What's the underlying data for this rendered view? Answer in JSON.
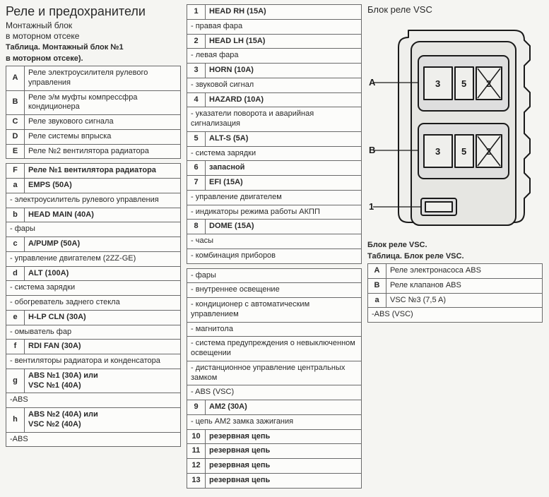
{
  "col1": {
    "title": "Реле и предохранители",
    "sub1": "Монтажный блок",
    "sub2": "в моторном отсеке",
    "caption1": "Таблица. Монтажный блок №1",
    "caption2": "в моторном отсеке).",
    "t1": [
      {
        "k": "A",
        "v": "Реле электроусилителя рулевого управления"
      },
      {
        "k": "B",
        "v": "Реле э/м муфты компрессфра кондиционера"
      },
      {
        "k": "C",
        "v": "Реле звукового сигнала"
      },
      {
        "k": "D",
        "v": "Реле системы впрыска"
      },
      {
        "k": "E",
        "v": "Реле №2 вентилятора радиатора"
      }
    ],
    "t2": [
      {
        "k": "F",
        "v": "Реле №1 вентилятора радиатора",
        "bold": true
      },
      {
        "k": "a",
        "v": "EMPS (50A)",
        "bold": true
      },
      {
        "span": "- электроусилитель рулевого управления"
      },
      {
        "k": "b",
        "v": "HEAD MAIN (40A)",
        "bold": true
      },
      {
        "span": "- фары"
      },
      {
        "k": "c",
        "v": "A/PUMP (50A)",
        "bold": true
      },
      {
        "span": "- управление двигателем (2ZZ-GE)"
      },
      {
        "k": "d",
        "v": "ALT   (100A)",
        "bold": true
      },
      {
        "span": "- система зарядки"
      },
      {
        "span": "- обогреватель заднего стекла"
      },
      {
        "k": "e",
        "v": "H-LP CLN (30A)",
        "bold": true
      },
      {
        "span": "- омыватель фар"
      },
      {
        "k": "f",
        "v": "RDI FAN (30A)",
        "bold": true
      },
      {
        "span": "- вентиляторы радиатора и конденсатора"
      },
      {
        "k": "g",
        "v": "ABS №1      (30A) или\nVSC №1      (40A)",
        "bold": true
      },
      {
        "span": "-ABS"
      },
      {
        "k": "h",
        "v": "ABS №2      (40A) или\nVSC №2      (40A)",
        "bold": true
      },
      {
        "span": "-ABS"
      }
    ]
  },
  "col2": {
    "rows": [
      {
        "k": "1",
        "v": "HEAD RH (15A)",
        "bold": true
      },
      {
        "span": "- правая фара"
      },
      {
        "k": "2",
        "v": "HEAD LH (15A)",
        "bold": true
      },
      {
        "span": "- левая фара"
      },
      {
        "k": "3",
        "v": "HORN (10A)",
        "bold": true
      },
      {
        "span": "- звуковой сигнал"
      },
      {
        "k": "4",
        "v": "HAZARD (10A)",
        "bold": true
      },
      {
        "span": "- указатели поворота и аварийная сигнализация"
      },
      {
        "k": "5",
        "v": "ALT-S (5A)",
        "bold": true
      },
      {
        "span": "- система зарядки"
      },
      {
        "k": "6",
        "v": "запасной",
        "bold": true
      },
      {
        "k": "7",
        "v": "EFI (15A)",
        "bold": true
      },
      {
        "span": "- управление двигателем"
      },
      {
        "span": "- индикаторы режима работы АКПП"
      },
      {
        "k": "8",
        "v": "DOME (15A)",
        "bold": true
      },
      {
        "span": "- часы"
      },
      {
        "span": "- комбинация приборов"
      }
    ],
    "rows2": [
      {
        "span": "- фары"
      },
      {
        "span": "- внутреннее освещение"
      },
      {
        "span": "- кондиционер с автоматическим управлением"
      },
      {
        "span": "- магнитола"
      },
      {
        "span": "- система предупреждения о невыключенном освещении"
      },
      {
        "span": "- дистанционное управление центральных замком"
      },
      {
        "span": "- ABS  (VSC)"
      },
      {
        "k": "9",
        "v": "AM2 (30A)",
        "bold": true
      },
      {
        "span": "- цепь AM2 замка зажигания"
      },
      {
        "k": "10",
        "v": "резервная цепь",
        "bold": true
      },
      {
        "k": "11",
        "v": "резервная цепь",
        "bold": true
      },
      {
        "k": "12",
        "v": "резервная цепь",
        "bold": true
      },
      {
        "k": "13",
        "v": "резервная цепь",
        "bold": true
      }
    ]
  },
  "col3": {
    "title": "Блок реле VSC",
    "dcap1": "Блок реле VSC.",
    "dcap2": "Таблица. Блок реле VSC.",
    "rows": [
      {
        "k": "A",
        "v": "Реле электронасоса ABS"
      },
      {
        "k": "B",
        "v": "Реле клапанов ABS"
      },
      {
        "k": "a",
        "v": "VSC №3 (7,5 A)"
      },
      {
        "span": "-ABS  (VSC)"
      }
    ],
    "diagram": {
      "outer_stroke": "#1a1a1a",
      "fill": "#efefec",
      "labels": {
        "A": "A",
        "B": "B",
        "one": "1",
        "two": "2",
        "three": "3",
        "five": "5"
      }
    }
  }
}
